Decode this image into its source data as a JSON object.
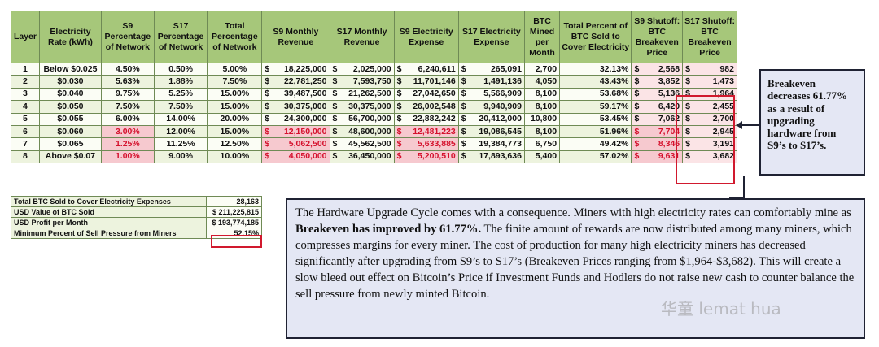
{
  "table": {
    "headers": [
      "Layer",
      "Electricity Rate (kWh)",
      "S9 Percentage of Network",
      "S17 Percentage of Network",
      "Total Percentage of Network",
      "S9 Monthly Revenue",
      "S17 Monthly Revenue",
      "S9 Electricity Expense",
      "S17 Electricity Expense",
      "BTC Mined per Month",
      "Total Percent of BTC Sold to Cover Electricity",
      "S9 Shutoff: BTC Breakeven Price",
      "S17 Shutoff: BTC Breakeven Price"
    ],
    "currency_symbol": "$",
    "rows": [
      {
        "layer": "1",
        "rate": "Below $0.025",
        "s9_pct": "4.50%",
        "s17_pct": "0.50%",
        "total_pct": "5.00%",
        "s9_rev": "18,225,000",
        "s17_rev": "2,025,000",
        "s9_exp": "6,240,611",
        "s17_exp": "265,091",
        "btc": "2,700",
        "pct_sold": "32.13%",
        "s9_be": "2,568",
        "s17_be": "982"
      },
      {
        "layer": "2",
        "rate": "$0.030",
        "s9_pct": "5.63%",
        "s17_pct": "1.88%",
        "total_pct": "7.50%",
        "s9_rev": "22,781,250",
        "s17_rev": "7,593,750",
        "s9_exp": "11,701,146",
        "s17_exp": "1,491,136",
        "btc": "4,050",
        "pct_sold": "43.43%",
        "s9_be": "3,852",
        "s17_be": "1,473"
      },
      {
        "layer": "3",
        "rate": "$0.040",
        "s9_pct": "9.75%",
        "s17_pct": "5.25%",
        "total_pct": "15.00%",
        "s9_rev": "39,487,500",
        "s17_rev": "21,262,500",
        "s9_exp": "27,042,650",
        "s17_exp": "5,566,909",
        "btc": "8,100",
        "pct_sold": "53.68%",
        "s9_be": "5,136",
        "s17_be": "1,964"
      },
      {
        "layer": "4",
        "rate": "$0.050",
        "s9_pct": "7.50%",
        "s17_pct": "7.50%",
        "total_pct": "15.00%",
        "s9_rev": "30,375,000",
        "s17_rev": "30,375,000",
        "s9_exp": "26,002,548",
        "s17_exp": "9,940,909",
        "btc": "8,100",
        "pct_sold": "59.17%",
        "s9_be": "6,420",
        "s17_be": "2,455"
      },
      {
        "layer": "5",
        "rate": "$0.055",
        "s9_pct": "6.00%",
        "s17_pct": "14.00%",
        "total_pct": "20.00%",
        "s9_rev": "24,300,000",
        "s17_rev": "56,700,000",
        "s9_exp": "22,882,242",
        "s17_exp": "20,412,000",
        "btc": "10,800",
        "pct_sold": "53.45%",
        "s9_be": "7,062",
        "s17_be": "2,700"
      },
      {
        "layer": "6",
        "rate": "$0.060",
        "s9_pct": "3.00%",
        "s17_pct": "12.00%",
        "total_pct": "15.00%",
        "s9_rev": "12,150,000",
        "s17_rev": "48,600,000",
        "s9_exp": "12,481,223",
        "s17_exp": "19,086,545",
        "btc": "8,100",
        "pct_sold": "51.96%",
        "s9_be": "7,704",
        "s17_be": "2,945"
      },
      {
        "layer": "7",
        "rate": "$0.065",
        "s9_pct": "1.25%",
        "s17_pct": "11.25%",
        "total_pct": "12.50%",
        "s9_rev": "5,062,500",
        "s17_rev": "45,562,500",
        "s9_exp": "5,633,885",
        "s17_exp": "19,384,773",
        "btc": "6,750",
        "pct_sold": "49.42%",
        "s9_be": "8,346",
        "s17_be": "3,191"
      },
      {
        "layer": "8",
        "rate": "Above $0.07",
        "s9_pct": "1.00%",
        "s17_pct": "9.00%",
        "total_pct": "10.00%",
        "s9_rev": "4,050,000",
        "s17_rev": "36,450,000",
        "s9_exp": "5,200,510",
        "s17_exp": "17,893,636",
        "btc": "5,400",
        "pct_sold": "57.02%",
        "s9_be": "9,631",
        "s17_be": "3,682"
      }
    ]
  },
  "summary": [
    {
      "label": "Total BTC Sold to Cover Electricity Expenses",
      "value": "28,163"
    },
    {
      "label": "USD Value of BTC Sold",
      "value": "$ 211,225,815"
    },
    {
      "label": "USD Profit per Month",
      "value": "$ 193,774,185"
    },
    {
      "label": "Minimum Percent of Sell Pressure from Miners",
      "value": "52.15%"
    }
  ],
  "breakeven_callout": "Breakeven decreases 61.77% as a result of upgrading hardware from S9’s to S17’s.",
  "main_callout": {
    "part1": "The Hardware Upgrade Cycle comes with a consequence. Miners with high electricity rates can comfortably mine as ",
    "bold": "Breakeven has improved by 61.77%.",
    "part2": " The finite amount of rewards are now distributed among many miners, which compresses margins for every miner. The cost of production for many high electricity miners has decreased significantly after upgrading from S9’s to S17’s (Breakeven Prices ranging from $1,964-$3,682). This will create a slow bleed out effect on Bitcoin’s Price if Investment Funds and Hodlers do not raise new cash to counter balance the sell pressure from newly minted Bitcoin."
  },
  "watermark": "华童 lemat hua",
  "colors": {
    "header_green": "#a6c77a",
    "highlight_pink": "#f6c9cf",
    "highlight_red_text": "#d5112d",
    "outline_red": "#d1192e",
    "callout_bg": "#e4e7f4"
  }
}
